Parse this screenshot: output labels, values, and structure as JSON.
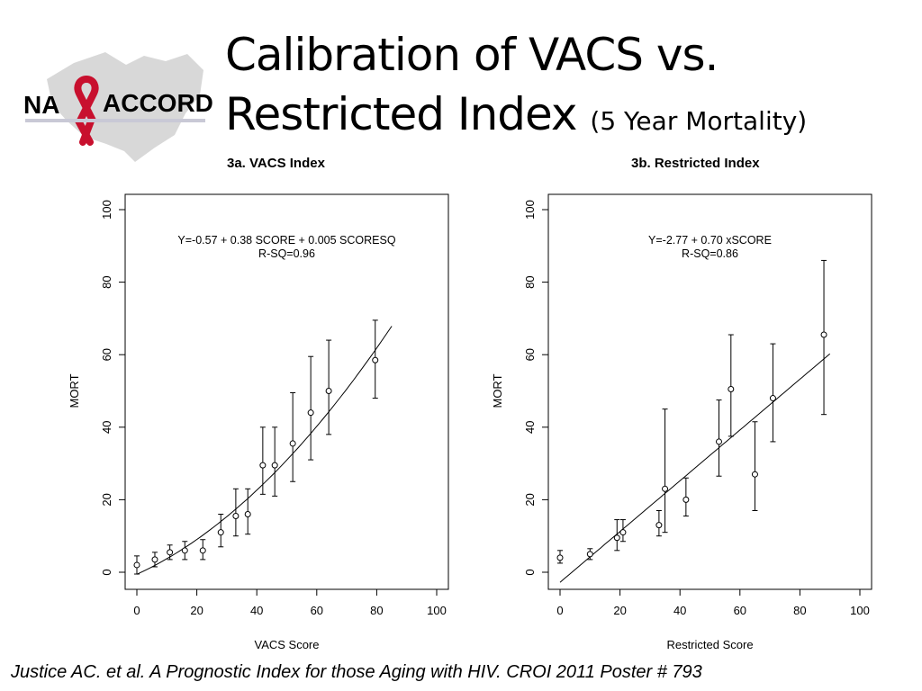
{
  "logo": {
    "text_left": "NA",
    "text_right": "ACCORD"
  },
  "title": {
    "main": "Calibration of VACS vs. Restricted Index",
    "sub": "(5 Year Mortality)"
  },
  "chart_data": [
    {
      "type": "scatter",
      "title": "3a. VACS Index",
      "xlabel": "VACS Score",
      "ylabel": "MORT",
      "xlim": [
        0,
        100
      ],
      "ylim": [
        0,
        100
      ],
      "x_ticks": [
        0,
        20,
        40,
        60,
        80,
        100
      ],
      "y_ticks": [
        0,
        20,
        40,
        60,
        80,
        100
      ],
      "annotation": [
        "Y=-0.57 + 0.38 SCORE + 0.005 SCORESQ",
        "R-SQ=0.96"
      ],
      "points": [
        {
          "x": 0,
          "y": 2,
          "lo": -0.5,
          "hi": 4.5
        },
        {
          "x": 6,
          "y": 3.5,
          "lo": 1.5,
          "hi": 5.5
        },
        {
          "x": 11,
          "y": 5.5,
          "lo": 3.5,
          "hi": 7.5
        },
        {
          "x": 16,
          "y": 6,
          "lo": 3.5,
          "hi": 8.5
        },
        {
          "x": 22,
          "y": 6,
          "lo": 3.5,
          "hi": 9
        },
        {
          "x": 28,
          "y": 11,
          "lo": 7,
          "hi": 16
        },
        {
          "x": 33,
          "y": 15.5,
          "lo": 10,
          "hi": 23
        },
        {
          "x": 37,
          "y": 16,
          "lo": 10.5,
          "hi": 23
        },
        {
          "x": 42,
          "y": 29.5,
          "lo": 21.5,
          "hi": 40
        },
        {
          "x": 46,
          "y": 29.5,
          "lo": 21,
          "hi": 40
        },
        {
          "x": 52,
          "y": 35.5,
          "lo": 25,
          "hi": 49.5
        },
        {
          "x": 58,
          "y": 44,
          "lo": 31,
          "hi": 59.5
        },
        {
          "x": 64,
          "y": 50,
          "lo": 38,
          "hi": 64
        },
        {
          "x": 79.5,
          "y": 58.5,
          "lo": 48,
          "hi": 69.5
        }
      ],
      "fit": {
        "kind": "quadratic",
        "intercept": -0.57,
        "linear": 0.38,
        "quadratic": 0.005,
        "x_range": [
          0,
          85
        ]
      }
    },
    {
      "type": "scatter",
      "title": "3b. Restricted Index",
      "xlabel": "Restricted Score",
      "ylabel": "MORT",
      "xlim": [
        0,
        100
      ],
      "ylim": [
        0,
        100
      ],
      "x_ticks": [
        0,
        20,
        40,
        60,
        80,
        100
      ],
      "y_ticks": [
        0,
        20,
        40,
        60,
        80,
        100
      ],
      "annotation": [
        "Y=-2.77 + 0.70 xSCORE",
        "R-SQ=0.86"
      ],
      "points": [
        {
          "x": 0,
          "y": 4,
          "lo": 2.5,
          "hi": 6
        },
        {
          "x": 10,
          "y": 5,
          "lo": 3.5,
          "hi": 6.5
        },
        {
          "x": 19,
          "y": 9.5,
          "lo": 6,
          "hi": 14.5
        },
        {
          "x": 21,
          "y": 11,
          "lo": 8.5,
          "hi": 14.5
        },
        {
          "x": 33,
          "y": 13,
          "lo": 10,
          "hi": 17
        },
        {
          "x": 35,
          "y": 23,
          "lo": 11,
          "hi": 45
        },
        {
          "x": 42,
          "y": 20,
          "lo": 15.5,
          "hi": 26
        },
        {
          "x": 53,
          "y": 36,
          "lo": 26.5,
          "hi": 47.5
        },
        {
          "x": 57,
          "y": 50.5,
          "lo": 37.5,
          "hi": 65.5
        },
        {
          "x": 65,
          "y": 27,
          "lo": 17,
          "hi": 41.5
        },
        {
          "x": 71,
          "y": 48,
          "lo": 36,
          "hi": 63
        },
        {
          "x": 88,
          "y": 65.5,
          "lo": 43.5,
          "hi": 86
        }
      ],
      "fit": {
        "kind": "linear",
        "intercept": -2.77,
        "linear": 0.7,
        "quadratic": 0,
        "x_range": [
          0,
          90
        ]
      }
    }
  ],
  "citation": "Justice AC. et al. A Prognostic Index for those Aging with HIV. CROI  2011 Poster # 793"
}
